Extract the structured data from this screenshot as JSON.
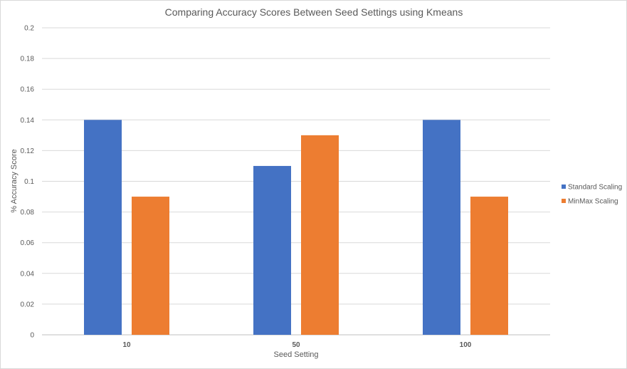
{
  "chart_data": {
    "type": "bar",
    "title": "Comparing Accuracy Scores Between Seed Settings using Kmeans",
    "xlabel": "Seed Setting",
    "ylabel": "% Accuracy Score",
    "categories": [
      "10",
      "50",
      "100"
    ],
    "series": [
      {
        "name": "Standard Scaling",
        "color": "#4472C4",
        "values": [
          0.14,
          0.11,
          0.14
        ]
      },
      {
        "name": "MinMax Scaling",
        "color": "#ED7D31",
        "values": [
          0.09,
          0.13,
          0.09
        ]
      }
    ],
    "ylim": [
      0,
      0.2
    ],
    "yticks": [
      "0",
      "0.02",
      "0.04",
      "0.06",
      "0.08",
      "0.1",
      "0.12",
      "0.14",
      "0.16",
      "0.18",
      "0.2"
    ],
    "grid": true,
    "legend": "right"
  }
}
